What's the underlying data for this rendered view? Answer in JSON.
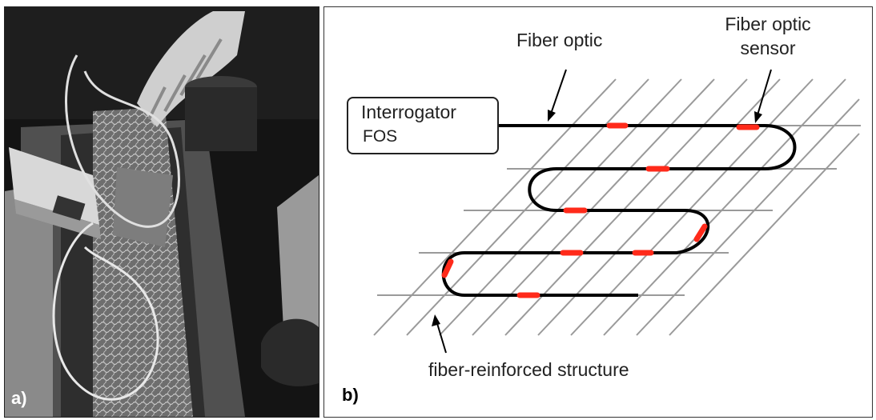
{
  "panel_a": {
    "label": "a)"
  },
  "panel_b": {
    "label": "b)",
    "labels": {
      "fiber_optic": "Fiber optic",
      "fos_line1": "Fiber optic",
      "fos_line2": "sensor",
      "interrogator_line1": "Interrogator",
      "interrogator_line2": "FOS",
      "structure": "fiber-reinforced structure"
    }
  },
  "colors": {
    "fiber": "#000000",
    "sensor": "#ff2a1a",
    "grid": "#9a9a9a"
  }
}
